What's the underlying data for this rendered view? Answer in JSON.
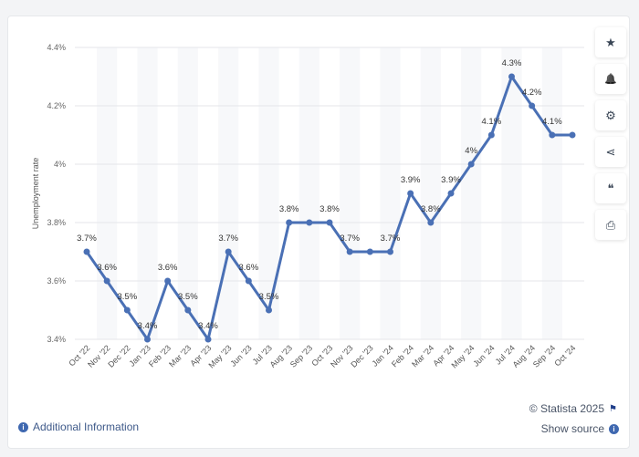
{
  "chart_data": {
    "type": "line",
    "title": "",
    "xlabel": "",
    "ylabel": "Unemployment rate",
    "ylim": [
      3.4,
      4.4
    ],
    "yticks": [
      "3.4%",
      "3.6%",
      "3.8%",
      "4%",
      "4.2%",
      "4.4%"
    ],
    "ytick_values": [
      3.4,
      3.6,
      3.8,
      4.0,
      4.2,
      4.4
    ],
    "grid": true,
    "categories": [
      "Oct '22",
      "Nov '22",
      "Dec '22",
      "Jan '23",
      "Feb '23",
      "Mar '23",
      "Apr '23",
      "May '23",
      "Jun '23",
      "Jul '23",
      "Aug '23",
      "Sep '23",
      "Oct '23",
      "Nov '23",
      "Dec '23",
      "Jan '24",
      "Feb '24",
      "Mar '24",
      "Apr '24",
      "May '24",
      "Jun '24",
      "Jul '24",
      "Aug '24",
      "Sep '24",
      "Oct '24"
    ],
    "series": [
      {
        "name": "Unemployment rate",
        "color": "#4a70b5",
        "values": [
          3.7,
          3.6,
          3.5,
          3.4,
          3.6,
          3.5,
          3.4,
          3.7,
          3.6,
          3.5,
          3.8,
          3.8,
          3.8,
          3.7,
          3.7,
          3.7,
          3.9,
          3.8,
          3.9,
          4.0,
          4.1,
          4.3,
          4.2,
          4.1,
          4.1
        ],
        "data_labels": [
          "3.7%",
          "3.6%",
          "3.5%",
          "3.4%",
          "3.6%",
          "3.5%",
          "3.4%",
          "3.7%",
          "3.6%",
          "3.5%",
          "3.8%",
          "",
          "3.8%",
          "3.7%",
          "",
          "3.7%",
          "3.9%",
          "3.8%",
          "3.9%",
          "4%",
          "4.1%",
          "4.3%",
          "4.2%",
          "4.1%",
          ""
        ]
      }
    ]
  },
  "sidebar": {
    "buttons": [
      {
        "icon": "star-icon",
        "glyph": "★"
      },
      {
        "icon": "bell-icon",
        "glyph": "🔔"
      },
      {
        "icon": "gear-icon",
        "glyph": "⚙"
      },
      {
        "icon": "share-icon",
        "glyph": "⋖"
      },
      {
        "icon": "quote-icon",
        "glyph": "❝"
      },
      {
        "icon": "print-icon",
        "glyph": "⎙"
      }
    ]
  },
  "footer": {
    "additional_info": "Additional Information",
    "copyright": "© Statista 2025",
    "show_source": "Show source"
  }
}
